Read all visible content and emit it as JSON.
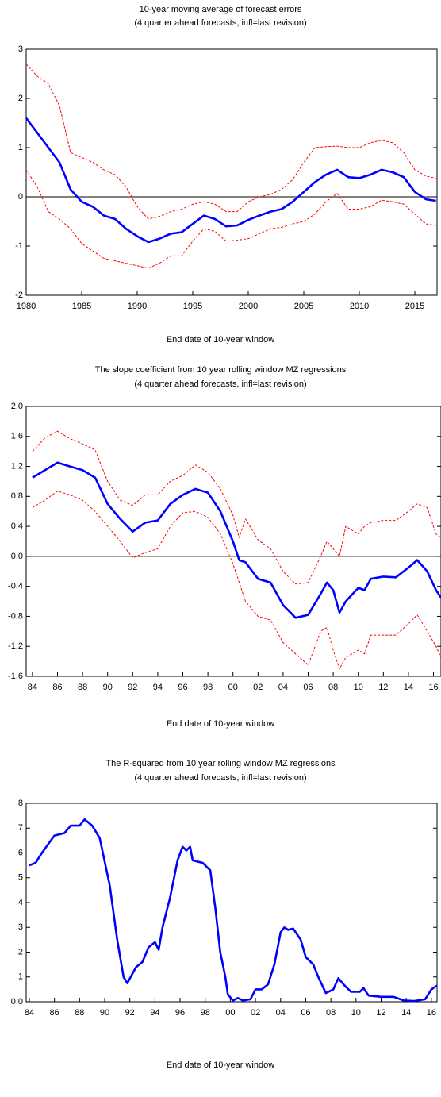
{
  "chart_data": [
    {
      "type": "line",
      "title": "10-year moving average of forecast errors",
      "subtitle": "(4 quarter ahead forecasts, infl=last revision)",
      "x_label": "End date of 10-year window",
      "x": [
        1980,
        1981,
        1982,
        1983,
        1984,
        1985,
        1986,
        1987,
        1988,
        1989,
        1990,
        1991,
        1992,
        1993,
        1994,
        1995,
        1996,
        1997,
        1998,
        1999,
        2000,
        2001,
        2002,
        2003,
        2004,
        2005,
        2006,
        2007,
        2008,
        2009,
        2010,
        2011,
        2012,
        2013,
        2014,
        2015,
        2016,
        2016.9
      ],
      "series": [
        {
          "color": "#0000ff",
          "line_style": "solid",
          "values": [
            1.6,
            1.3,
            1.0,
            0.7,
            0.15,
            -0.1,
            -0.2,
            -0.38,
            -0.45,
            -0.65,
            -0.8,
            -0.92,
            -0.85,
            -0.75,
            -0.72,
            -0.55,
            -0.38,
            -0.45,
            -0.6,
            -0.58,
            -0.47,
            -0.38,
            -0.3,
            -0.25,
            -0.1,
            0.1,
            0.3,
            0.45,
            0.55,
            0.4,
            0.38,
            0.45,
            0.55,
            0.5,
            0.4,
            0.1,
            -0.05,
            -0.08
          ]
        },
        {
          "color": "#ff0000",
          "line_style": "dashed",
          "values": [
            2.7,
            2.45,
            2.3,
            1.85,
            0.9,
            0.8,
            0.7,
            0.55,
            0.45,
            0.2,
            -0.2,
            -0.45,
            -0.4,
            -0.3,
            -0.25,
            -0.15,
            -0.1,
            -0.15,
            -0.3,
            -0.3,
            -0.1,
            0.0,
            0.05,
            0.15,
            0.35,
            0.7,
            1.0,
            1.02,
            1.03,
            1.0,
            1.0,
            1.1,
            1.15,
            1.1,
            0.9,
            0.55,
            0.42,
            0.38
          ]
        },
        {
          "color": "#ff0000",
          "line_style": "dashed",
          "values": [
            0.55,
            0.2,
            -0.3,
            -0.45,
            -0.65,
            -0.95,
            -1.1,
            -1.25,
            -1.3,
            -1.35,
            -1.4,
            -1.45,
            -1.35,
            -1.2,
            -1.2,
            -0.9,
            -0.65,
            -0.7,
            -0.9,
            -0.88,
            -0.85,
            -0.75,
            -0.65,
            -0.62,
            -0.55,
            -0.5,
            -0.35,
            -0.1,
            0.07,
            -0.25,
            -0.25,
            -0.2,
            -0.07,
            -0.1,
            -0.15,
            -0.35,
            -0.55,
            -0.58
          ]
        }
      ],
      "xlim": [
        1980,
        2017
      ],
      "xticks": [
        1980,
        1985,
        1990,
        1995,
        2000,
        2005,
        2010,
        2015
      ],
      "ylim": [
        -2,
        3
      ],
      "yticks": [
        -2,
        -1,
        0,
        1,
        2,
        3
      ]
    },
    {
      "type": "line",
      "title": "The slope coefficient from 10 year rolling window MZ regressions",
      "subtitle": "(4 quarter ahead forecasts, infl=last revision)",
      "x_label": "End date of 10-year window",
      "x": [
        1984,
        1985,
        1986,
        1987,
        1988,
        1989,
        1990,
        1991,
        1992,
        1993,
        1994,
        1995,
        1996,
        1997,
        1998,
        1999,
        2000,
        2000.5,
        2001,
        2002,
        2003,
        2004,
        2005,
        2006,
        2007,
        2007.5,
        2008,
        2008.5,
        2009,
        2010,
        2010.5,
        2011,
        2012,
        2013,
        2014,
        2014.7,
        2015.5,
        2016.2,
        2016.6
      ],
      "series": [
        {
          "color": "#0000ff",
          "line_style": "solid",
          "values": [
            1.05,
            1.15,
            1.25,
            1.2,
            1.15,
            1.05,
            0.7,
            0.5,
            0.33,
            0.45,
            0.48,
            0.7,
            0.82,
            0.9,
            0.85,
            0.6,
            0.2,
            -0.05,
            -0.08,
            -0.3,
            -0.35,
            -0.65,
            -0.82,
            -0.78,
            -0.5,
            -0.35,
            -0.45,
            -0.75,
            -0.6,
            -0.42,
            -0.45,
            -0.3,
            -0.27,
            -0.28,
            -0.15,
            -0.05,
            -0.2,
            -0.45,
            -0.55
          ]
        },
        {
          "color": "#ff0000",
          "line_style": "dashed",
          "values": [
            1.4,
            1.58,
            1.67,
            1.57,
            1.5,
            1.42,
            1.0,
            0.75,
            0.68,
            0.82,
            0.82,
            1.0,
            1.08,
            1.22,
            1.12,
            0.9,
            0.55,
            0.25,
            0.5,
            0.22,
            0.1,
            -0.2,
            -0.37,
            -0.35,
            0.0,
            0.2,
            0.1,
            0.0,
            0.4,
            0.3,
            0.4,
            0.45,
            0.48,
            0.48,
            0.6,
            0.7,
            0.65,
            0.3,
            0.25
          ]
        },
        {
          "color": "#ff0000",
          "line_style": "dashed",
          "values": [
            0.65,
            0.75,
            0.87,
            0.82,
            0.75,
            0.6,
            0.4,
            0.2,
            -0.02,
            0.05,
            0.1,
            0.4,
            0.58,
            0.6,
            0.52,
            0.3,
            -0.1,
            -0.35,
            -0.6,
            -0.8,
            -0.85,
            -1.15,
            -1.3,
            -1.45,
            -1.0,
            -0.95,
            -1.25,
            -1.5,
            -1.35,
            -1.25,
            -1.3,
            -1.05,
            -1.05,
            -1.05,
            -0.9,
            -0.78,
            -1.0,
            -1.2,
            -1.35
          ]
        }
      ],
      "xlim": [
        1983.5,
        2016.6
      ],
      "xticks": [
        {
          "value": 1984,
          "label": "84"
        },
        {
          "value": 1986,
          "label": "86"
        },
        {
          "value": 1988,
          "label": "88"
        },
        {
          "value": 1990,
          "label": "90"
        },
        {
          "value": 1992,
          "label": "92"
        },
        {
          "value": 1994,
          "label": "94"
        },
        {
          "value": 1996,
          "label": "96"
        },
        {
          "value": 1998,
          "label": "98"
        },
        {
          "value": 2000,
          "label": "00"
        },
        {
          "value": 2002,
          "label": "02"
        },
        {
          "value": 2004,
          "label": "04"
        },
        {
          "value": 2006,
          "label": "06"
        },
        {
          "value": 2008,
          "label": "08"
        },
        {
          "value": 2010,
          "label": "10"
        },
        {
          "value": 2012,
          "label": "12"
        },
        {
          "value": 2014,
          "label": "14"
        },
        {
          "value": 2016,
          "label": "16"
        }
      ],
      "ylim": [
        -1.6,
        2.0
      ],
      "yticks": [
        -1.6,
        -1.2,
        -0.8,
        -0.4,
        {
          "value": 0,
          "label": "0.0"
        },
        0.4,
        0.8,
        1.2,
        1.6,
        {
          "value": 2,
          "label": "2.0"
        }
      ]
    },
    {
      "type": "line",
      "title": "The R-squared from 10 year rolling window MZ regressions",
      "subtitle": "(4 quarter ahead forecasts, infl=last revision)",
      "x_label": "End date of 10-year window",
      "x": [
        1984,
        1984.5,
        1985,
        1986,
        1986.8,
        1987.3,
        1988,
        1988.4,
        1989,
        1989.6,
        1990.4,
        1991,
        1991.5,
        1991.8,
        1992.5,
        1993,
        1993.5,
        1994,
        1994.3,
        1994.6,
        1995.2,
        1995.8,
        1996.2,
        1996.5,
        1996.8,
        1997,
        1997.8,
        1998.4,
        1998.8,
        1999.2,
        1999.6,
        1999.8,
        2000.2,
        2000.6,
        2001,
        2001.6,
        2002,
        2002.5,
        2003,
        2003.5,
        2004,
        2004.3,
        2004.6,
        2005,
        2005.6,
        2006,
        2006.6,
        2007,
        2007.6,
        2008.2,
        2008.6,
        2009,
        2009.6,
        2010.3,
        2010.6,
        2011,
        2012,
        2013,
        2013.8,
        2014.6,
        2015.5,
        2016,
        2016.45
      ],
      "series": [
        {
          "color": "#0000ff",
          "line_style": "solid",
          "values": [
            0.55,
            0.56,
            0.6,
            0.67,
            0.68,
            0.71,
            0.71,
            0.735,
            0.71,
            0.66,
            0.47,
            0.25,
            0.1,
            0.075,
            0.14,
            0.16,
            0.22,
            0.24,
            0.21,
            0.3,
            0.42,
            0.57,
            0.625,
            0.61,
            0.625,
            0.57,
            0.56,
            0.53,
            0.38,
            0.2,
            0.1,
            0.03,
            0.005,
            0.015,
            0.005,
            0.01,
            0.05,
            0.05,
            0.07,
            0.15,
            0.28,
            0.3,
            0.29,
            0.295,
            0.25,
            0.18,
            0.15,
            0.1,
            0.035,
            0.05,
            0.095,
            0.07,
            0.04,
            0.04,
            0.055,
            0.025,
            0.02,
            0.02,
            0.005,
            0.003,
            0.01,
            0.05,
            0.065
          ]
        }
      ],
      "xlim": [
        1983.75,
        2016.45
      ],
      "xticks": [
        {
          "value": 1984,
          "label": "84"
        },
        {
          "value": 1986,
          "label": "86"
        },
        {
          "value": 1988,
          "label": "88"
        },
        {
          "value": 1990,
          "label": "90"
        },
        {
          "value": 1992,
          "label": "92"
        },
        {
          "value": 1994,
          "label": "94"
        },
        {
          "value": 1996,
          "label": "96"
        },
        {
          "value": 1998,
          "label": "98"
        },
        {
          "value": 2000,
          "label": "00"
        },
        {
          "value": 2002,
          "label": "02"
        },
        {
          "value": 2004,
          "label": "04"
        },
        {
          "value": 2006,
          "label": "06"
        },
        {
          "value": 2008,
          "label": "08"
        },
        {
          "value": 2010,
          "label": "10"
        },
        {
          "value": 2012,
          "label": "12"
        },
        {
          "value": 2014,
          "label": "14"
        },
        {
          "value": 2016,
          "label": "16"
        }
      ],
      "ylim": [
        0,
        0.8
      ],
      "yticks": [
        {
          "value": 0,
          "label": "0.0"
        },
        {
          "value": 0.1,
          "label": ".1"
        },
        {
          "value": 0.2,
          "label": ".2"
        },
        {
          "value": 0.3,
          "label": ".3"
        },
        {
          "value": 0.4,
          "label": ".4"
        },
        {
          "value": 0.5,
          "label": ".5"
        },
        {
          "value": 0.6,
          "label": ".6"
        },
        {
          "value": 0.7,
          "label": ".7"
        },
        {
          "value": 0.8,
          "label": ".8"
        }
      ]
    }
  ]
}
